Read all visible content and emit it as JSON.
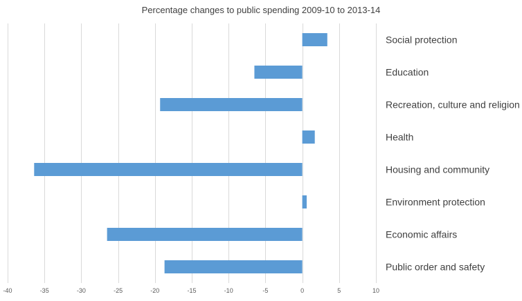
{
  "chart_data": {
    "type": "bar",
    "orientation": "horizontal",
    "title": "Percentage changes to public spending 2009-10 to 2013-14",
    "xlabel": "",
    "ylabel": "",
    "xlim": [
      -40,
      10
    ],
    "x_ticks": [
      -40,
      -35,
      -30,
      -25,
      -20,
      -15,
      -10,
      -5,
      0,
      5,
      10
    ],
    "grid": true,
    "legend": "none",
    "bar_color": "#5b9bd5",
    "categories": [
      "Social protection",
      "Education",
      "Recreation, culture and religion",
      "Health",
      "Housing and community",
      "Environment protection",
      "Economic affairs",
      "Public order and safety"
    ],
    "values": [
      3.4,
      -6.5,
      -19.3,
      1.7,
      -36.4,
      0.6,
      -26.5,
      -18.7
    ]
  }
}
